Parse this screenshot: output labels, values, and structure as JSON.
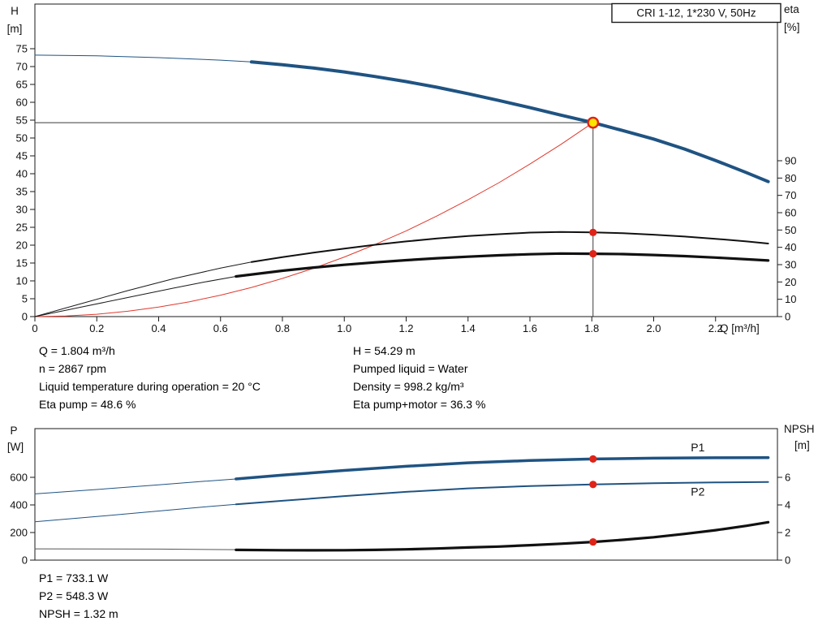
{
  "title_box": "CRI 1-12, 1*230 V, 50Hz",
  "colors": {
    "curve_blue": "#1f5382",
    "curve_black": "#111111",
    "system_red": "#e0392e",
    "duty_fill": "#ffe400",
    "duty_ring": "#e02318",
    "dot_red": "#e02318",
    "crosshair": "#3a3a3a"
  },
  "info_top": {
    "rows": [
      {
        "left": "Q = 1.804 m³/h",
        "right": "H = 54.29 m"
      },
      {
        "left": "n = 2867 rpm",
        "right": "Pumped liquid = Water"
      },
      {
        "left": "Liquid temperature during operation = 20 °C",
        "right": "Density = 998.2 kg/m³"
      },
      {
        "left": "Eta pump = 48.6 %",
        "right": "Eta pump+motor = 36.3 %"
      }
    ]
  },
  "info_bottom": {
    "lines": [
      "P1 = 733.1 W",
      "P2 = 548.3 W",
      "NPSH = 1.32 m"
    ]
  },
  "chart_data": [
    {
      "type": "line",
      "name": "hq-chart",
      "title": "CRI 1-12, 1*230 V, 50Hz",
      "axes": {
        "x": {
          "title": "Q [m³/h]",
          "min": 0,
          "max": 2.4,
          "ticks": [
            {
              "v": 0,
              "label": "0"
            },
            {
              "v": 0.2,
              "label": "0.2"
            },
            {
              "v": 0.4,
              "label": "0.4"
            },
            {
              "v": 0.6,
              "label": "0.6"
            },
            {
              "v": 0.8,
              "label": "0.8"
            },
            {
              "v": 1.0,
              "label": "1.0"
            },
            {
              "v": 1.2,
              "label": "1.2"
            },
            {
              "v": 1.4,
              "label": "1.4"
            },
            {
              "v": 1.6,
              "label": "1.6"
            },
            {
              "v": 1.8,
              "label": "1.8"
            },
            {
              "v": 2.0,
              "label": "2.0"
            },
            {
              "v": 2.2,
              "label": "2.2"
            }
          ]
        },
        "left": {
          "symbol": "H",
          "unit": "[m]",
          "min": 0,
          "max": 87.5,
          "ticks": [
            {
              "v": 0,
              "label": "0"
            },
            {
              "v": 5,
              "label": "5"
            },
            {
              "v": 10,
              "label": "10"
            },
            {
              "v": 15,
              "label": "15"
            },
            {
              "v": 20,
              "label": "20"
            },
            {
              "v": 25,
              "label": "25"
            },
            {
              "v": 30,
              "label": "30"
            },
            {
              "v": 35,
              "label": "35"
            },
            {
              "v": 40,
              "label": "40"
            },
            {
              "v": 45,
              "label": "45"
            },
            {
              "v": 50,
              "label": "50"
            },
            {
              "v": 55,
              "label": "55"
            },
            {
              "v": 60,
              "label": "60"
            },
            {
              "v": 65,
              "label": "65"
            },
            {
              "v": 70,
              "label": "70"
            },
            {
              "v": 75,
              "label": "75"
            }
          ]
        },
        "right": {
          "symbol": "eta",
          "unit": "[%]",
          "min": 0,
          "max": 90,
          "ticks": [
            {
              "v": 0,
              "label": "0"
            },
            {
              "v": 10,
              "label": "10"
            },
            {
              "v": 20,
              "label": "20"
            },
            {
              "v": 30,
              "label": "30"
            },
            {
              "v": 40,
              "label": "40"
            },
            {
              "v": 50,
              "label": "50"
            },
            {
              "v": 60,
              "label": "60"
            },
            {
              "v": 70,
              "label": "70"
            },
            {
              "v": 80,
              "label": "80"
            },
            {
              "v": 90,
              "label": "90"
            }
          ]
        }
      },
      "crosshair": {
        "q": 1.804,
        "v": 54.29
      },
      "series": [
        {
          "name": "pump-curve-ref",
          "axis": "left",
          "color": "#1f5382",
          "width": 1,
          "points": [
            [
              0,
              73.2
            ],
            [
              0.2,
              73.0
            ],
            [
              0.4,
              72.5
            ],
            [
              0.6,
              71.8
            ],
            [
              0.7,
              71.3
            ]
          ]
        },
        {
          "name": "pump-curve",
          "axis": "left",
          "color": "#1f5382",
          "width": 4,
          "points": [
            [
              0.7,
              71.3
            ],
            [
              0.8,
              70.5
            ],
            [
              0.9,
              69.6
            ],
            [
              1.0,
              68.5
            ],
            [
              1.1,
              67.2
            ],
            [
              1.2,
              65.8
            ],
            [
              1.3,
              64.2
            ],
            [
              1.4,
              62.4
            ],
            [
              1.5,
              60.5
            ],
            [
              1.6,
              58.5
            ],
            [
              1.7,
              56.4
            ],
            [
              1.804,
              54.29
            ],
            [
              1.9,
              52.1
            ],
            [
              2.0,
              49.7
            ],
            [
              2.1,
              46.9
            ],
            [
              2.2,
              43.7
            ],
            [
              2.3,
              40.3
            ],
            [
              2.37,
              37.8
            ]
          ]
        },
        {
          "name": "system-curve",
          "axis": "left",
          "color": "#e0392e",
          "width": 1,
          "points": [
            [
              0,
              0
            ],
            [
              0.1,
              0.17
            ],
            [
              0.2,
              0.67
            ],
            [
              0.3,
              1.5
            ],
            [
              0.4,
              2.67
            ],
            [
              0.5,
              4.17
            ],
            [
              0.6,
              6.0
            ],
            [
              0.7,
              8.17
            ],
            [
              0.8,
              10.68
            ],
            [
              0.9,
              13.5
            ],
            [
              1.0,
              16.68
            ],
            [
              1.1,
              20.2
            ],
            [
              1.2,
              24.0
            ],
            [
              1.3,
              28.2
            ],
            [
              1.4,
              32.7
            ],
            [
              1.5,
              37.5
            ],
            [
              1.6,
              42.7
            ],
            [
              1.7,
              48.2
            ],
            [
              1.804,
              54.29
            ]
          ]
        },
        {
          "name": "eta-pump-ref",
          "axis": "right",
          "color": "#1a1a1a",
          "width": 1,
          "points": [
            [
              0,
              0
            ],
            [
              0.15,
              7.5
            ],
            [
              0.3,
              15
            ],
            [
              0.45,
              22
            ],
            [
              0.6,
              28
            ],
            [
              0.7,
              31.5
            ]
          ]
        },
        {
          "name": "eta-pump",
          "axis": "right",
          "color": "#111111",
          "width": 2,
          "points": [
            [
              0.7,
              31.5
            ],
            [
              0.8,
              34.3
            ],
            [
              0.9,
              36.9
            ],
            [
              1.0,
              39.3
            ],
            [
              1.1,
              41.5
            ],
            [
              1.2,
              43.4
            ],
            [
              1.3,
              45.1
            ],
            [
              1.4,
              46.5
            ],
            [
              1.5,
              47.6
            ],
            [
              1.6,
              48.5
            ],
            [
              1.7,
              48.9
            ],
            [
              1.804,
              48.6
            ],
            [
              1.9,
              48.2
            ],
            [
              2.0,
              47.3
            ],
            [
              2.1,
              46.2
            ],
            [
              2.2,
              44.9
            ],
            [
              2.3,
              43.4
            ],
            [
              2.37,
              42.2
            ]
          ]
        },
        {
          "name": "eta-pump-motor-ref",
          "axis": "right",
          "color": "#1a1a1a",
          "width": 1,
          "points": [
            [
              0,
              0
            ],
            [
              0.15,
              5.5
            ],
            [
              0.3,
              11
            ],
            [
              0.45,
              16.5
            ],
            [
              0.55,
              20
            ],
            [
              0.65,
              23.2
            ]
          ]
        },
        {
          "name": "eta-pump-motor",
          "axis": "right",
          "color": "#111111",
          "width": 3.2,
          "points": [
            [
              0.65,
              23.2
            ],
            [
              0.8,
              26.5
            ],
            [
              0.9,
              28.3
            ],
            [
              1.0,
              29.9
            ],
            [
              1.1,
              31.3
            ],
            [
              1.2,
              32.6
            ],
            [
              1.3,
              33.7
            ],
            [
              1.4,
              34.6
            ],
            [
              1.5,
              35.4
            ],
            [
              1.6,
              36.0
            ],
            [
              1.7,
              36.4
            ],
            [
              1.804,
              36.3
            ],
            [
              1.9,
              36.1
            ],
            [
              2.0,
              35.6
            ],
            [
              2.1,
              34.9
            ],
            [
              2.2,
              34.1
            ],
            [
              2.3,
              33.1
            ],
            [
              2.37,
              32.4
            ]
          ]
        }
      ],
      "markers": [
        {
          "name": "duty-point",
          "q": 1.804,
          "v": 54.29,
          "axis": "left",
          "r": 6.2,
          "fill": "#ffe400",
          "stroke": "#e02318",
          "sw": 2.4
        },
        {
          "name": "eta-pump-point",
          "q": 1.804,
          "v": 48.6,
          "axis": "right",
          "r": 4.6,
          "fill": "#e02318"
        },
        {
          "name": "eta-pump-motor-point",
          "q": 1.804,
          "v": 36.3,
          "axis": "right",
          "r": 4.6,
          "fill": "#e02318"
        }
      ],
      "curve_labels": []
    },
    {
      "type": "line",
      "name": "power-npsh-chart",
      "axes": {
        "x": {
          "title": "",
          "min": 0,
          "max": 2.4,
          "ticks": []
        },
        "left": {
          "symbol": "P",
          "unit": "[W]",
          "min": 0,
          "max": 953,
          "ticks": [
            {
              "v": 0,
              "label": "0"
            },
            {
              "v": 200,
              "label": "200"
            },
            {
              "v": 400,
              "label": "400"
            },
            {
              "v": 600,
              "label": "600"
            }
          ]
        },
        "right": {
          "symbol": "NPSH",
          "unit": "[m]",
          "min": 0,
          "max": 9.5,
          "ticks": [
            {
              "v": 0,
              "label": "0"
            },
            {
              "v": 2,
              "label": "2"
            },
            {
              "v": 4,
              "label": "4"
            },
            {
              "v": 6,
              "label": "6"
            }
          ]
        }
      },
      "series": [
        {
          "name": "p1-ref",
          "axis": "left",
          "color": "#1f5382",
          "width": 1,
          "points": [
            [
              0,
              480
            ],
            [
              0.2,
              512
            ],
            [
              0.4,
              546
            ],
            [
              0.55,
              572
            ],
            [
              0.65,
              588
            ]
          ]
        },
        {
          "name": "p1-curve",
          "axis": "left",
          "color": "#1f5382",
          "width": 3.5,
          "points": [
            [
              0.65,
              588
            ],
            [
              0.8,
              616
            ],
            [
              1.0,
              650
            ],
            [
              1.2,
              680
            ],
            [
              1.4,
              705
            ],
            [
              1.6,
              722
            ],
            [
              1.804,
              733.1
            ],
            [
              2.0,
              739
            ],
            [
              2.2,
              742
            ],
            [
              2.37,
              743
            ]
          ]
        },
        {
          "name": "p2-ref",
          "axis": "left",
          "color": "#1f5382",
          "width": 1,
          "points": [
            [
              0,
              278
            ],
            [
              0.2,
              316
            ],
            [
              0.4,
              356
            ],
            [
              0.55,
              386
            ],
            [
              0.65,
              404
            ]
          ]
        },
        {
          "name": "p2-curve",
          "axis": "left",
          "color": "#1f5382",
          "width": 2,
          "points": [
            [
              0.65,
              404
            ],
            [
              0.8,
              430
            ],
            [
              1.0,
              464
            ],
            [
              1.2,
              495
            ],
            [
              1.4,
              520
            ],
            [
              1.6,
              537
            ],
            [
              1.804,
              548.3
            ],
            [
              2.0,
              557
            ],
            [
              2.2,
              563
            ],
            [
              2.37,
              566
            ]
          ]
        },
        {
          "name": "npsh-ref",
          "axis": "right",
          "color": "#555555",
          "width": 1,
          "points": [
            [
              0,
              0.82
            ],
            [
              0.4,
              0.8
            ],
            [
              0.65,
              0.76
            ]
          ]
        },
        {
          "name": "npsh-curve",
          "axis": "right",
          "color": "#111111",
          "width": 3.2,
          "points": [
            [
              0.65,
              0.74
            ],
            [
              0.8,
              0.72
            ],
            [
              0.9,
              0.71
            ],
            [
              1.0,
              0.72
            ],
            [
              1.1,
              0.74
            ],
            [
              1.2,
              0.78
            ],
            [
              1.3,
              0.84
            ],
            [
              1.4,
              0.92
            ],
            [
              1.5,
              0.98
            ],
            [
              1.6,
              1.08
            ],
            [
              1.7,
              1.19
            ],
            [
              1.804,
              1.32
            ],
            [
              1.9,
              1.47
            ],
            [
              2.0,
              1.66
            ],
            [
              2.1,
              1.9
            ],
            [
              2.2,
              2.17
            ],
            [
              2.3,
              2.49
            ],
            [
              2.37,
              2.75
            ]
          ]
        }
      ],
      "markers": [
        {
          "name": "p1-point",
          "q": 1.804,
          "v": 733.1,
          "axis": "left",
          "r": 4.6,
          "fill": "#e02318"
        },
        {
          "name": "p2-point",
          "q": 1.804,
          "v": 548.3,
          "axis": "left",
          "r": 4.6,
          "fill": "#e02318"
        },
        {
          "name": "npsh-point",
          "q": 1.804,
          "v": 1.32,
          "axis": "right",
          "r": 4.6,
          "fill": "#e02318"
        }
      ],
      "curve_labels": [
        {
          "text": "P1",
          "q": 2.12,
          "v": 788,
          "axis": "left",
          "color": "#1f5382"
        },
        {
          "text": "P2",
          "q": 2.12,
          "v": 468,
          "axis": "left",
          "color": "#1f5382"
        }
      ]
    }
  ]
}
